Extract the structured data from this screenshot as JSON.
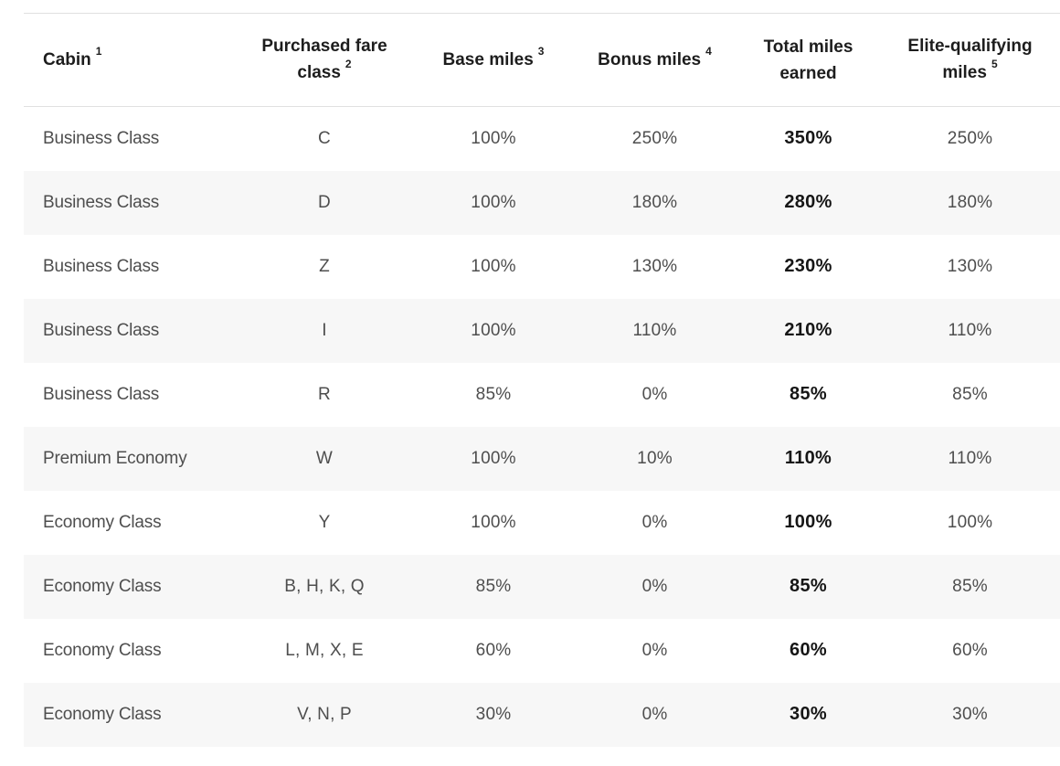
{
  "colors": {
    "background": "#ffffff",
    "stripe": "#f7f7f7",
    "border": "#e0e0e0",
    "header_text": "#1d1d1d",
    "body_text": "#4e4e4e",
    "total_text": "#161616"
  },
  "table": {
    "header": [
      {
        "line1": "Cabin",
        "sup": "1"
      },
      {
        "line1": "Purchased fare",
        "line2": "class",
        "sup": "2"
      },
      {
        "line1": "Base miles",
        "sup": "3"
      },
      {
        "line1": "Bonus miles",
        "sup": "4"
      },
      {
        "line1": "Total miles",
        "line2": "earned"
      },
      {
        "line1": "Elite-qualifying",
        "line2": "miles",
        "sup": "5"
      }
    ],
    "rows": [
      {
        "cabin": "Business Class",
        "fare_class": "C",
        "base": "100%",
        "bonus": "250%",
        "total": "350%",
        "elite": "250%"
      },
      {
        "cabin": "Business Class",
        "fare_class": "D",
        "base": "100%",
        "bonus": "180%",
        "total": "280%",
        "elite": "180%"
      },
      {
        "cabin": "Business Class",
        "fare_class": "Z",
        "base": "100%",
        "bonus": "130%",
        "total": "230%",
        "elite": "130%"
      },
      {
        "cabin": "Business Class",
        "fare_class": "I",
        "base": "100%",
        "bonus": "110%",
        "total": "210%",
        "elite": "110%"
      },
      {
        "cabin": "Business Class",
        "fare_class": "R",
        "base": "85%",
        "bonus": "0%",
        "total": "85%",
        "elite": "85%"
      },
      {
        "cabin": "Premium Economy",
        "fare_class": "W",
        "base": "100%",
        "bonus": "10%",
        "total": "110%",
        "elite": "110%"
      },
      {
        "cabin": "Economy Class",
        "fare_class": "Y",
        "base": "100%",
        "bonus": "0%",
        "total": "100%",
        "elite": "100%"
      },
      {
        "cabin": "Economy Class",
        "fare_class": "B, H, K, Q",
        "base": "85%",
        "bonus": "0%",
        "total": "85%",
        "elite": "85%"
      },
      {
        "cabin": "Economy Class",
        "fare_class": "L, M, X, E",
        "base": "60%",
        "bonus": "0%",
        "total": "60%",
        "elite": "60%"
      },
      {
        "cabin": "Economy Class",
        "fare_class": "V, N, P",
        "base": "30%",
        "bonus": "0%",
        "total": "30%",
        "elite": "30%"
      }
    ]
  },
  "chart_data": {
    "type": "table",
    "title": "",
    "columns": [
      "Cabin 1",
      "Purchased fare class 2",
      "Base miles 3",
      "Bonus miles 4",
      "Total miles earned",
      "Elite-qualifying miles 5"
    ],
    "rows": [
      [
        "Business Class",
        "C",
        "100%",
        "250%",
        "350%",
        "250%"
      ],
      [
        "Business Class",
        "D",
        "100%",
        "180%",
        "280%",
        "180%"
      ],
      [
        "Business Class",
        "Z",
        "100%",
        "130%",
        "230%",
        "130%"
      ],
      [
        "Business Class",
        "I",
        "100%",
        "110%",
        "210%",
        "110%"
      ],
      [
        "Business Class",
        "R",
        "85%",
        "0%",
        "85%",
        "85%"
      ],
      [
        "Premium Economy",
        "W",
        "100%",
        "10%",
        "110%",
        "110%"
      ],
      [
        "Economy Class",
        "Y",
        "100%",
        "0%",
        "100%",
        "100%"
      ],
      [
        "Economy Class",
        "B, H, K, Q",
        "85%",
        "0%",
        "85%",
        "85%"
      ],
      [
        "Economy Class",
        "L, M, X, E",
        "60%",
        "0%",
        "60%",
        "60%"
      ],
      [
        "Economy Class",
        "V, N, P",
        "30%",
        "0%",
        "30%",
        "30%"
      ]
    ]
  }
}
